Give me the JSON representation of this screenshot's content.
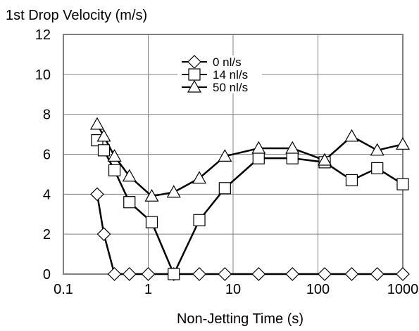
{
  "chart_data": {
    "type": "line",
    "ylabel": "1st Drop Velocity (m/s)",
    "xlabel": "Non-Jetting Time (s)",
    "x_scale": "log",
    "xlim": [
      0.1,
      1000
    ],
    "ylim": [
      0,
      12
    ],
    "x_ticks": [
      0.1,
      1,
      10,
      100,
      1000
    ],
    "x_tick_labels": [
      "0.1",
      "1",
      "10",
      "100",
      "1000"
    ],
    "y_ticks": [
      0,
      2,
      4,
      6,
      8,
      10,
      12
    ],
    "y_tick_labels": [
      "0",
      "2",
      "4",
      "6",
      "8",
      "10",
      "12"
    ],
    "grid": true,
    "legend_position": "top-center",
    "series": [
      {
        "name": "0 nl/s",
        "marker": "diamond",
        "points": [
          [
            0.25,
            4.0
          ],
          [
            0.3,
            2.0
          ],
          [
            0.4,
            0.0
          ],
          [
            0.6,
            0.0
          ],
          [
            1.0,
            0.0
          ],
          [
            2.0,
            0.0
          ],
          [
            4.0,
            0.0
          ],
          [
            8.0,
            0.0
          ],
          [
            20.0,
            0.0
          ],
          [
            50.0,
            0.0
          ],
          [
            120.0,
            0.0
          ],
          [
            250.0,
            0.0
          ],
          [
            500.0,
            0.0
          ],
          [
            1000.0,
            0.0
          ]
        ]
      },
      {
        "name": "14 nl/s",
        "marker": "square",
        "points": [
          [
            0.25,
            6.7
          ],
          [
            0.3,
            6.2
          ],
          [
            0.4,
            5.2
          ],
          [
            0.6,
            3.6
          ],
          [
            1.1,
            2.6
          ],
          [
            2.0,
            0.0
          ],
          [
            4.0,
            2.7
          ],
          [
            8.0,
            4.3
          ],
          [
            20.0,
            5.8
          ],
          [
            50.0,
            5.8
          ],
          [
            120.0,
            5.6
          ],
          [
            250.0,
            4.7
          ],
          [
            500.0,
            5.3
          ],
          [
            1000.0,
            4.5
          ]
        ]
      },
      {
        "name": "50 nl/s",
        "marker": "triangle",
        "points": [
          [
            0.25,
            7.5
          ],
          [
            0.3,
            6.9
          ],
          [
            0.4,
            5.9
          ],
          [
            0.6,
            4.9
          ],
          [
            1.1,
            3.9
          ],
          [
            2.0,
            4.1
          ],
          [
            4.0,
            4.8
          ],
          [
            8.0,
            5.9
          ],
          [
            20.0,
            6.3
          ],
          [
            50.0,
            6.3
          ],
          [
            120.0,
            5.7
          ],
          [
            250.0,
            6.9
          ],
          [
            500.0,
            6.2
          ],
          [
            1000.0,
            6.5
          ]
        ]
      }
    ]
  }
}
